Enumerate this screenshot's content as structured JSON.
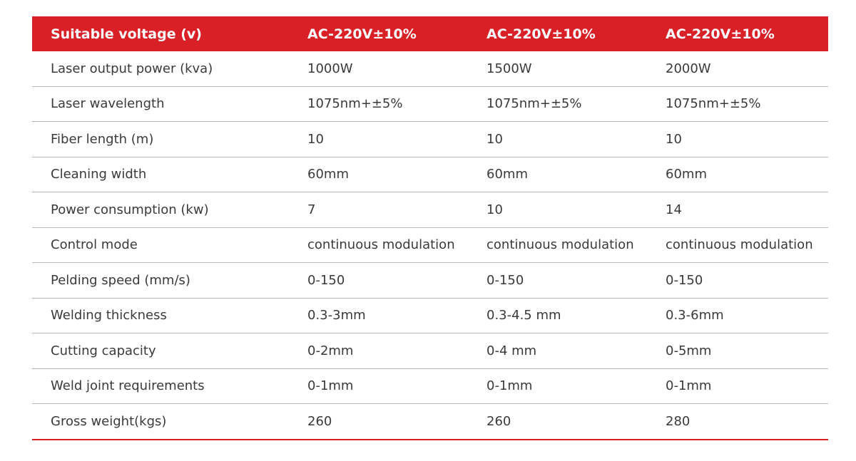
{
  "header": {
    "label": "Suitable voltage (v)",
    "columns": [
      "AC-220V±10%",
      "AC-220V±10%",
      "AC-220V±10%"
    ]
  },
  "rows": [
    {
      "label": "Laser output power (kva)",
      "values": [
        "1000W",
        "1500W",
        "2000W"
      ]
    },
    {
      "label": "Laser wavelength",
      "values": [
        "1075nm+±5%",
        "1075nm+±5%",
        "1075nm+±5%"
      ]
    },
    {
      "label": "Fiber length (m)",
      "values": [
        "10",
        "10",
        "10"
      ]
    },
    {
      "label": "Cleaning width",
      "values": [
        "60mm",
        "60mm",
        "60mm"
      ]
    },
    {
      "label": "Power consumption (kw)",
      "values": [
        "7",
        "10",
        "14"
      ]
    },
    {
      "label": "Control mode",
      "values": [
        "continuous modulation",
        "continuous modulation",
        "continuous modulation"
      ]
    },
    {
      "label": "Pelding speed (mm/s)",
      "values": [
        "0-150",
        "0-150",
        "0-150"
      ]
    },
    {
      "label": "Welding thickness",
      "values": [
        "0.3-3mm",
        "0.3-4.5 mm",
        "0.3-6mm"
      ]
    },
    {
      "label": "Cutting capacity",
      "values": [
        "0-2mm",
        "0-4 mm",
        "0-5mm"
      ]
    },
    {
      "label": "Weld joint requirements",
      "values": [
        "0-1mm",
        "0-1mm",
        "0-1mm"
      ]
    },
    {
      "label": "Gross weight(kgs)",
      "values": [
        "260",
        "260",
        "280"
      ]
    }
  ],
  "colors": {
    "accent": "#d92027",
    "header_text": "#ffffff",
    "body_text": "#3a3a3a",
    "divider": "#b9b9b9"
  }
}
